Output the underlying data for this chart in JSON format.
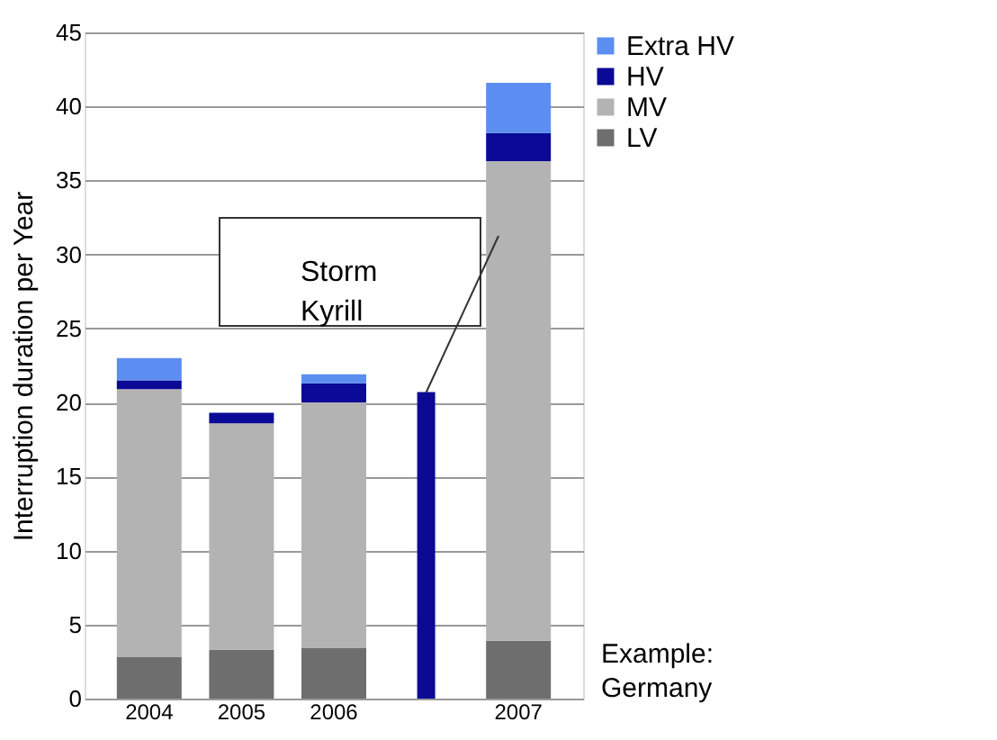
{
  "chart_data": {
    "type": "bar",
    "stacked": true,
    "ylabel": "Interruption duration per Year",
    "categories": [
      "2004",
      "2005",
      "2006",
      null,
      "2007"
    ],
    "series": [
      {
        "name": "LV",
        "color": "#6e6e6e",
        "values": [
          2.8,
          3.3,
          3.4,
          0,
          3.9
        ]
      },
      {
        "name": "MV",
        "color": "#b3b3b3",
        "values": [
          18.1,
          15.3,
          16.6,
          0,
          32.4
        ]
      },
      {
        "name": "HV",
        "color": "#0a0a96",
        "values": [
          0.6,
          0.7,
          1.3,
          20.7,
          1.9
        ]
      },
      {
        "name": "Extra HV",
        "color": "#5b8ef0",
        "values": [
          1.5,
          0,
          0.6,
          0,
          3.4
        ]
      }
    ],
    "ylim": [
      0,
      45
    ],
    "yticks": [
      0,
      5,
      10,
      15,
      20,
      25,
      30,
      35,
      40,
      45
    ],
    "grid": "y",
    "legend": "top right",
    "annotations": [
      "Storm Kyrill",
      "Example: Germany"
    ]
  }
}
